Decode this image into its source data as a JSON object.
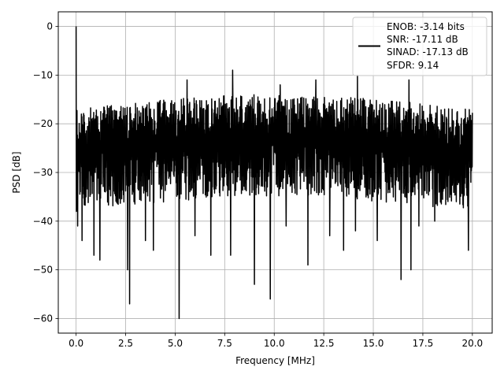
{
  "chart_data": {
    "type": "line",
    "xlabel": "Frequency [MHz]",
    "ylabel": "PSD [dB]",
    "xlim": [
      -0.9,
      21.0
    ],
    "ylim": [
      -63,
      3
    ],
    "xticks": [
      0.0,
      2.5,
      5.0,
      7.5,
      10.0,
      12.5,
      15.0,
      17.5,
      20.0
    ],
    "xtick_labels": [
      "0.0",
      "2.5",
      "5.0",
      "7.5",
      "10.0",
      "12.5",
      "15.0",
      "17.5",
      "20.0"
    ],
    "yticks": [
      0,
      -10,
      -20,
      -30,
      -40,
      -50,
      -60
    ],
    "ytick_labels": [
      "0",
      "−10",
      "−20",
      "−30",
      "−40",
      "−50",
      "−60"
    ],
    "grid": true,
    "legend_position": "top-right",
    "legend_lines": [
      "ENOB: -3.14 bits",
      "SNR: -17.11 dB",
      "SINAD: -17.13 dB",
      "SFDR: 9.14"
    ],
    "series_color": "#000000",
    "x_range": [
      0,
      20
    ],
    "peak": {
      "x": 0.0,
      "y": 0
    },
    "noise_floor": {
      "upper_envelope_db": -16,
      "typical_db": -24,
      "lower_envelope_db": -36,
      "max_upper_db": -9
    },
    "dips": [
      {
        "x": 0.08,
        "y": -41
      },
      {
        "x": 0.3,
        "y": -44
      },
      {
        "x": 0.9,
        "y": -47
      },
      {
        "x": 1.2,
        "y": -48
      },
      {
        "x": 2.6,
        "y": -50
      },
      {
        "x": 2.7,
        "y": -57
      },
      {
        "x": 3.5,
        "y": -44
      },
      {
        "x": 3.9,
        "y": -46
      },
      {
        "x": 5.2,
        "y": -60
      },
      {
        "x": 6.0,
        "y": -43
      },
      {
        "x": 6.8,
        "y": -47
      },
      {
        "x": 7.8,
        "y": -47
      },
      {
        "x": 9.0,
        "y": -53
      },
      {
        "x": 9.8,
        "y": -56
      },
      {
        "x": 10.6,
        "y": -41
      },
      {
        "x": 11.7,
        "y": -49
      },
      {
        "x": 12.8,
        "y": -43
      },
      {
        "x": 13.5,
        "y": -46
      },
      {
        "x": 14.1,
        "y": -42
      },
      {
        "x": 15.2,
        "y": -44
      },
      {
        "x": 16.4,
        "y": -52
      },
      {
        "x": 16.9,
        "y": -50
      },
      {
        "x": 17.3,
        "y": -41
      },
      {
        "x": 18.1,
        "y": -40
      },
      {
        "x": 19.8,
        "y": -46
      }
    ],
    "spikes": [
      {
        "x": 7.9,
        "y": -9
      },
      {
        "x": 5.6,
        "y": -11
      },
      {
        "x": 12.1,
        "y": -11
      },
      {
        "x": 14.2,
        "y": -10
      },
      {
        "x": 16.8,
        "y": -11
      },
      {
        "x": 10.3,
        "y": -12
      }
    ]
  }
}
